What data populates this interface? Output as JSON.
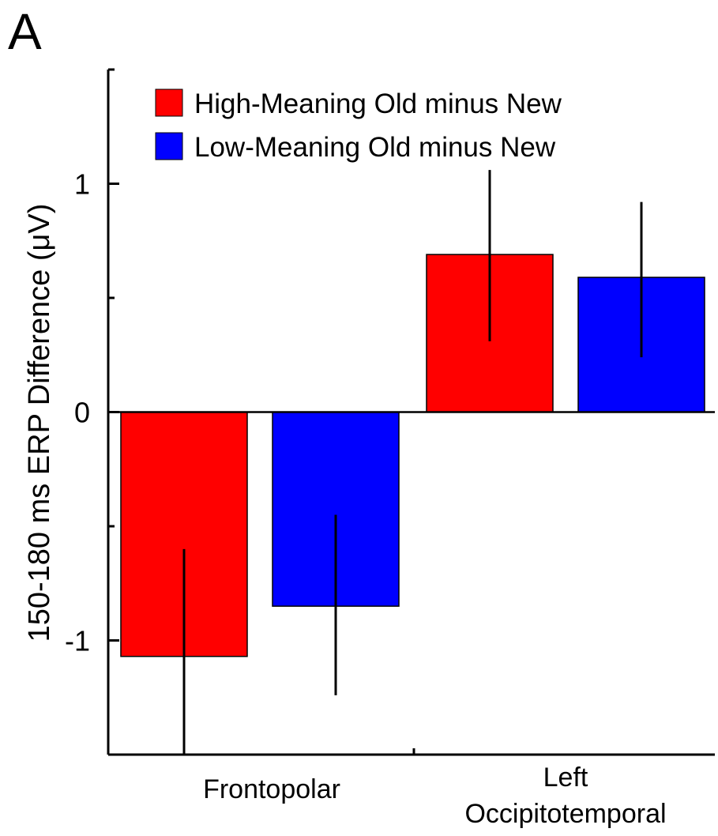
{
  "panel_label": "A",
  "colors": {
    "high": "#ff0000",
    "low": "#0000ff",
    "axis": "#000000",
    "errorbar": "#000000"
  },
  "chart_data": {
    "type": "bar",
    "title": "",
    "xlabel": "",
    "ylabel": "150-180 ms ERP Difference (μV)",
    "ylim": [
      -1.5,
      1.5
    ],
    "yticks": [
      -1,
      0,
      1
    ],
    "ytick_labels": [
      "-1",
      "0",
      "1"
    ],
    "categories": [
      {
        "lines": [
          "Frontopolar"
        ]
      },
      {
        "lines": [
          "Left",
          "Occipitotemporal"
        ]
      }
    ],
    "legend": {
      "position": "top-left"
    },
    "series": [
      {
        "name": "High-Meaning Old minus New",
        "color": "#ff0000",
        "values": [
          -1.07,
          0.69
        ],
        "error_low": [
          -1.5,
          0.31
        ],
        "error_high": [
          -0.6,
          1.06
        ]
      },
      {
        "name": "Low-Meaning Old minus New",
        "color": "#0000ff",
        "values": [
          -0.85,
          0.59
        ],
        "error_low": [
          -1.24,
          0.24
        ],
        "error_high": [
          -0.45,
          0.92
        ]
      }
    ]
  }
}
